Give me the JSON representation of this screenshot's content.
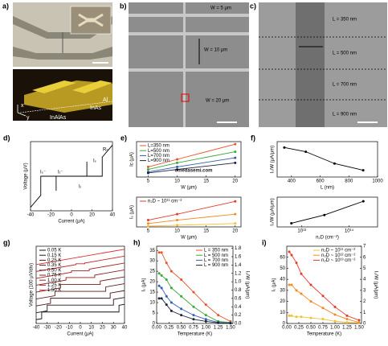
{
  "images": [
    {
      "label": "a)",
      "texts": [
        "x",
        "y",
        "Al",
        "InAs",
        "InAlAs"
      ]
    },
    {
      "label": "b)",
      "texts": [
        "W = 5 μm",
        "W = 10 μm",
        "W = 20 μm"
      ]
    },
    {
      "label": "c)",
      "texts": [
        "L = 350 nm",
        "L = 500 nm",
        "L = 700 nm",
        "L = 900 nm"
      ]
    }
  ],
  "watermark": "omedasemi.com",
  "chart_data": [
    {
      "type": "line",
      "label": "d)",
      "xlabel": "Current (μA)",
      "ylabel": "Voltage (μV)",
      "xlim": [
        -40,
        40
      ],
      "xticks": [
        -40,
        -20,
        0,
        20,
        40
      ],
      "ylim": [
        -1,
        1
      ],
      "annotations": [
        "Iₛ⁻",
        "Iᵣ⁻",
        "Iᵣ",
        "Iₛ",
        "Rₙ"
      ],
      "series": [
        {
          "color": "#000000",
          "x": [
            -40,
            -30,
            -30,
            30,
            30,
            40
          ],
          "values": [
            -0.9,
            -0.55,
            0,
            0,
            0.55,
            0.9
          ]
        },
        {
          "color": "#000000",
          "x": [
            -15,
            -15
          ],
          "values": [
            -0.42,
            0
          ]
        },
        {
          "color": "#000000",
          "x": [
            15,
            15
          ],
          "values": [
            0,
            0.42
          ]
        }
      ]
    },
    {
      "type": "line",
      "label": "e)",
      "markers": true,
      "xlabel": "W (μm)",
      "ylabel": "Ic (μA)",
      "x": [
        5,
        10,
        20
      ],
      "xlim": [
        3,
        21
      ],
      "xticks": [
        5,
        10,
        15,
        20
      ],
      "ylim": [
        0,
        70
      ],
      "series": [
        {
          "name": "L=350 nm",
          "color": "#e8542a",
          "values": [
            20,
            35,
            65
          ]
        },
        {
          "name": "L=500 nm",
          "color": "#3aa53a",
          "values": [
            15,
            28,
            50
          ]
        },
        {
          "name": "L=700 nm",
          "color": "#2e5fb0",
          "values": [
            10,
            20,
            38
          ]
        },
        {
          "name": "L=900 nm",
          "color": "#1b1f3b",
          "values": [
            8,
            15,
            28
          ]
        }
      ]
    },
    {
      "type": "line",
      "markers": true,
      "xlabel": "W (μm)",
      "ylabel": "Iₛ (μA)",
      "x": [
        5,
        10,
        20
      ],
      "xlim": [
        3,
        21
      ],
      "xticks": [
        5,
        10,
        15,
        20
      ],
      "ylim": [
        0,
        35
      ],
      "series": [
        {
          "name": "n₂D ~ 10¹¹ cm⁻²",
          "color": "#e33b2a",
          "values": [
            8,
            15,
            30
          ]
        },
        {
          "color": "#f08a24",
          "values": [
            4,
            8,
            15
          ]
        },
        {
          "color": "#f2c12e",
          "values": [
            1,
            2,
            4
          ]
        }
      ]
    },
    {
      "type": "line",
      "label": "f)",
      "markers": true,
      "xlabel": "L (nm)",
      "ylabel": "Iₛ/W (μA/μm)",
      "x": [
        350,
        500,
        700,
        900
      ],
      "xlim": [
        300,
        1000
      ],
      "xticks": [
        400,
        600,
        800,
        1000
      ],
      "ylim": [
        0,
        4.2
      ],
      "series": [
        {
          "color": "#000000",
          "values": [
            3.5,
            3.0,
            1.6,
            0.8
          ]
        }
      ]
    },
    {
      "type": "line",
      "markers": true,
      "xlog": true,
      "xlabel": "n₂D (cm⁻²)",
      "ylabel": "Iₛ/W (μA/μm)",
      "x": [
        6000000000000.0,
        30000000000000.0,
        200000000000000.0
      ],
      "xlim": [
        3000000000000.0,
        400000000000000.0
      ],
      "xticks": [
        {
          "value": 10000000000000.0,
          "label": "10¹³"
        },
        {
          "value": 100000000000000.0,
          "label": "10¹⁴"
        }
      ],
      "ylim": [
        0,
        6.5
      ],
      "series": [
        {
          "color": "#000000",
          "values": [
            0.8,
            2.6,
            5.6
          ]
        }
      ]
    },
    {
      "type": "line",
      "label": "g)",
      "xlabel": "Current (μA)",
      "ylabel": "Voltage (100 μV/div)",
      "xlim": [
        -40,
        40
      ],
      "xticks": [
        -40,
        -30,
        -20,
        -10,
        0,
        10,
        20,
        30,
        40
      ],
      "ylim": [
        -1.5,
        8.6
      ],
      "series": [
        {
          "name": "0.05 K",
          "color": "#111111",
          "x": [
            -40,
            -35,
            -35,
            35,
            35,
            40
          ],
          "values": [
            -1,
            -0.875,
            0,
            0,
            0.875,
            1
          ]
        },
        {
          "name": "0.15 K",
          "color": "#2a1414",
          "x": [
            -40,
            -30,
            -30,
            30,
            30,
            40
          ],
          "values": [
            -0.1,
            0.15,
            0.9,
            0.9,
            1.65,
            1.9
          ]
        },
        {
          "name": "0.25 K",
          "color": "#431717",
          "x": [
            -40,
            -27,
            -27,
            27,
            27,
            40
          ],
          "values": [
            0.8,
            1.125,
            1.8,
            1.8,
            2.475,
            2.8
          ]
        },
        {
          "name": "0.35 K",
          "color": "#5c1a1a",
          "x": [
            -40,
            -23,
            -23,
            23,
            23,
            40
          ],
          "values": [
            1.7,
            2.125,
            2.7,
            2.7,
            3.275,
            3.7
          ]
        },
        {
          "name": "0.50 K",
          "color": "#751d1e",
          "x": [
            -40,
            -18,
            -18,
            18,
            18,
            40
          ],
          "values": [
            2.6,
            3.15,
            3.6,
            3.6,
            4.05,
            4.6
          ]
        },
        {
          "name": "0.75 K",
          "color": "#8e2021",
          "x": [
            -40,
            -13,
            -13,
            13,
            13,
            40
          ],
          "values": [
            3.5,
            4.175,
            4.5,
            4.5,
            4.825,
            5.5
          ]
        },
        {
          "name": "1.00 K",
          "color": "#a72324",
          "x": [
            -40,
            -8,
            -8,
            8,
            8,
            40
          ],
          "values": [
            4.4,
            5.2,
            5.4,
            5.4,
            5.6,
            6.4
          ]
        },
        {
          "name": "1.25 K",
          "color": "#c02627",
          "x": [
            -40,
            -4,
            -4,
            4,
            4,
            40
          ],
          "values": [
            5.3,
            6.2,
            6.3,
            6.3,
            6.4,
            7.3
          ]
        },
        {
          "name": "1.50 K",
          "color": "#d92a2a",
          "x": [
            -40,
            -1,
            -1,
            1,
            1,
            40
          ],
          "values": [
            6.2,
            7.175,
            7.2,
            7.2,
            7.225,
            8.2
          ]
        }
      ]
    },
    {
      "type": "line",
      "label": "h)",
      "markers": true,
      "xlabel": "Temperature (K)",
      "ylabel": "Iₛ (μA)",
      "y2label": "Iₛ/W (μA/μm)",
      "x": [
        0.05,
        0.1,
        0.2,
        0.3,
        0.5,
        0.75,
        1.0,
        1.25,
        1.5
      ],
      "xlim": [
        0,
        1.55
      ],
      "xticks": [
        {
          "value": 0,
          "label": "0.00"
        },
        0.25,
        {
          "value": 0.5,
          "label": "0.50"
        },
        0.75,
        {
          "value": 1,
          "label": "1.00"
        },
        1.25,
        {
          "value": 1.5,
          "label": "1.50"
        }
      ],
      "ylim": [
        0,
        37
      ],
      "yticks": [
        0,
        5,
        10,
        15,
        20,
        25,
        30,
        35
      ],
      "y2lim": [
        0,
        1.85
      ],
      "y2ticks": [
        {
          "value": 0,
          "label": "0.0"
        },
        0.2,
        0.4,
        0.6,
        0.8,
        {
          "value": 1,
          "label": "1.0"
        },
        1.2,
        1.4,
        1.6,
        1.8
      ],
      "series": [
        {
          "name": "L = 350 nm",
          "color": "#e8542a",
          "values": [
            34,
            34,
            29,
            25,
            21,
            15,
            9,
            4,
            1
          ]
        },
        {
          "name": "L = 500 nm",
          "color": "#3aa53a",
          "values": [
            24,
            23,
            21,
            17,
            13,
            8,
            4,
            1,
            0.5
          ]
        },
        {
          "name": "L = 700 nm",
          "color": "#2e5fb0",
          "values": [
            18,
            17,
            13,
            10,
            7,
            4,
            2,
            0.5,
            0.2
          ]
        },
        {
          "name": "L = 900 nm",
          "color": "#1b1f3b",
          "values": [
            12,
            12,
            9,
            6,
            4,
            2,
            1,
            0.3,
            0.1
          ]
        }
      ]
    },
    {
      "type": "line",
      "label": "i)",
      "markers": true,
      "xlabel": "Temperature (K)",
      "ylabel": "Iₛ (μA)",
      "y2label": "Iₛ/W (μA/μm)",
      "x": [
        0.05,
        0.1,
        0.2,
        0.3,
        0.5,
        0.75,
        1.0,
        1.25,
        1.5
      ],
      "xlim": [
        0,
        1.55
      ],
      "xticks": [
        {
          "value": 0,
          "label": "0.00"
        },
        0.25,
        {
          "value": 0.5,
          "label": "0.50"
        },
        0.75,
        {
          "value": 1,
          "label": "1.00"
        },
        1.25,
        {
          "value": 1.5,
          "label": "1.50"
        }
      ],
      "ylim": [
        0,
        70
      ],
      "yticks": [
        0,
        10,
        20,
        30,
        40,
        50,
        60
      ],
      "y2lim": [
        0,
        7
      ],
      "y2ticks": [
        0,
        1,
        2,
        3,
        4,
        5,
        6,
        7
      ],
      "series": [
        {
          "name": "n₂D ~ 10¹¹ cm⁻²",
          "color": "#f2c12e",
          "values": [
            7,
            7,
            6,
            6,
            5,
            4,
            2,
            1,
            0.5
          ]
        },
        {
          "name": "n₂D ~ 10¹² cm⁻²",
          "color": "#f08a24",
          "values": [
            35,
            35,
            30,
            27,
            20,
            14,
            8,
            4,
            1
          ]
        },
        {
          "name": "n₂D ~ 10¹³ cm⁻²",
          "color": "#e33b2a",
          "values": [
            65,
            62,
            55,
            45,
            35,
            25,
            15,
            7,
            3
          ]
        }
      ]
    }
  ]
}
